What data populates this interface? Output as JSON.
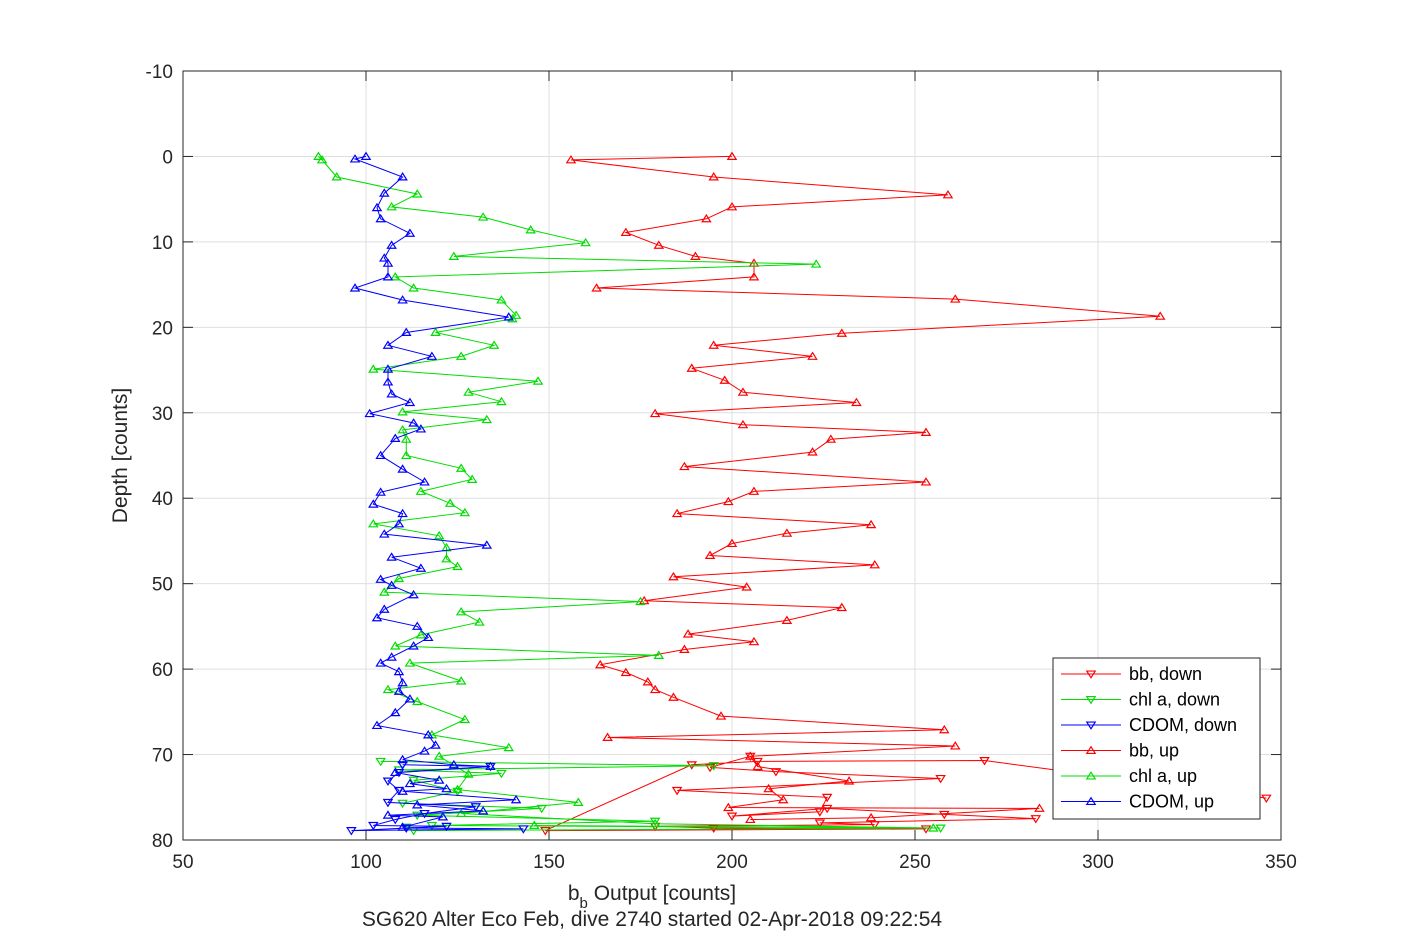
{
  "chart_data": {
    "type": "line",
    "xlabel_main": "b",
    "xlabel_sub": "b",
    "xlabel_rest": " Output [counts]",
    "ylabel": "Depth [counts]",
    "caption": "SG620 Alter Eco Feb, dive 2740 started 02-Apr-2018 09:22:54",
    "xlim": [
      50,
      350
    ],
    "ylim": [
      -10,
      80
    ],
    "y_reversed": true,
    "grid": true,
    "legend_position": "lower-right",
    "xticks": [
      "50",
      "100",
      "150",
      "200",
      "250",
      "300",
      "350"
    ],
    "yticks": [
      "-10",
      "0",
      "10",
      "20",
      "30",
      "40",
      "50",
      "60",
      "70",
      "80"
    ],
    "series": [
      {
        "name": "bb, down",
        "color": "#ff0000",
        "marker": "triangle-down",
        "points": [
          [
            205,
            70.2
          ],
          [
            194,
            71.5
          ],
          [
            212,
            72.0
          ],
          [
            257,
            72.8
          ],
          [
            185,
            74.2
          ],
          [
            226,
            75.0
          ],
          [
            224,
            76.7
          ],
          [
            200,
            77.2
          ],
          [
            226,
            76.3
          ],
          [
            258,
            77.0
          ],
          [
            283,
            77.5
          ],
          [
            224,
            78.0
          ],
          [
            239,
            78.2
          ],
          [
            179,
            78.4
          ],
          [
            195,
            78.6
          ],
          [
            253,
            78.7
          ],
          [
            149,
            78.9
          ],
          [
            189,
            71.2
          ],
          [
            207,
            70.8
          ],
          [
            269,
            70.7
          ],
          [
            346,
            75.1
          ]
        ]
      },
      {
        "name": "chl a, down",
        "color": "#00dd00",
        "marker": "triangle-down",
        "points": [
          [
            104,
            70.8
          ],
          [
            195,
            71.3
          ],
          [
            109,
            71.8
          ],
          [
            137,
            72.2
          ],
          [
            113,
            73.0
          ],
          [
            125,
            74.3
          ],
          [
            110,
            75.7
          ],
          [
            148,
            76.3
          ],
          [
            114,
            77.1
          ],
          [
            179,
            77.8
          ],
          [
            118,
            78.3
          ],
          [
            257,
            78.6
          ],
          [
            113,
            78.9
          ],
          [
            111,
            78.5
          ]
        ]
      },
      {
        "name": "CDOM, down",
        "color": "#0000ff",
        "marker": "triangle-down",
        "points": [
          [
            110,
            71.2
          ],
          [
            134,
            71.4
          ],
          [
            109,
            72.1
          ],
          [
            106,
            73.1
          ],
          [
            109,
            74.2
          ],
          [
            106,
            75.6
          ],
          [
            130,
            76.1
          ],
          [
            116,
            76.9
          ],
          [
            108,
            77.6
          ],
          [
            102,
            78.3
          ],
          [
            122,
            78.4
          ],
          [
            96,
            78.9
          ],
          [
            143,
            78.7
          ],
          [
            111,
            78.6
          ]
        ]
      },
      {
        "name": "bb, up",
        "color": "#ff0000",
        "marker": "triangle-up",
        "points": [
          [
            200,
            0.0
          ],
          [
            156,
            0.4
          ],
          [
            195,
            2.4
          ],
          [
            259,
            4.5
          ],
          [
            200,
            5.9
          ],
          [
            193,
            7.3
          ],
          [
            171,
            8.9
          ],
          [
            180,
            10.4
          ],
          [
            190,
            11.7
          ],
          [
            206,
            12.5
          ],
          [
            206,
            14.1
          ],
          [
            163,
            15.4
          ],
          [
            261,
            16.7
          ],
          [
            317,
            18.7
          ],
          [
            230,
            20.7
          ],
          [
            195,
            22.1
          ],
          [
            222,
            23.4
          ],
          [
            189,
            24.8
          ],
          [
            198,
            26.2
          ],
          [
            203,
            27.6
          ],
          [
            234,
            28.8
          ],
          [
            179,
            30.1
          ],
          [
            203,
            31.4
          ],
          [
            253,
            32.3
          ],
          [
            227,
            33.1
          ],
          [
            222,
            34.6
          ],
          [
            187,
            36.3
          ],
          [
            253,
            38.1
          ],
          [
            206,
            39.2
          ],
          [
            199,
            40.4
          ],
          [
            185,
            41.8
          ],
          [
            238,
            43.1
          ],
          [
            215,
            44.1
          ],
          [
            200,
            45.3
          ],
          [
            194,
            46.7
          ],
          [
            239,
            47.8
          ],
          [
            184,
            49.2
          ],
          [
            204,
            50.4
          ],
          [
            176,
            52.0
          ],
          [
            230,
            52.8
          ],
          [
            215,
            54.3
          ],
          [
            188,
            55.9
          ],
          [
            206,
            56.8
          ],
          [
            187,
            57.7
          ],
          [
            164,
            59.5
          ],
          [
            171,
            60.4
          ],
          [
            177,
            61.5
          ],
          [
            179,
            62.4
          ],
          [
            184,
            63.3
          ],
          [
            197,
            65.5
          ],
          [
            258,
            67.1
          ],
          [
            166,
            68.0
          ],
          [
            261,
            69.0
          ],
          [
            205,
            70.2
          ],
          [
            207,
            71.4
          ],
          [
            232,
            73.1
          ],
          [
            210,
            74.0
          ],
          [
            214,
            75.3
          ],
          [
            199,
            76.2
          ],
          [
            284,
            76.3
          ],
          [
            238,
            77.4
          ],
          [
            205,
            77.6
          ]
        ]
      },
      {
        "name": "chl a, up",
        "color": "#00dd00",
        "marker": "triangle-up",
        "points": [
          [
            87,
            0.0
          ],
          [
            88,
            0.4
          ],
          [
            92,
            2.4
          ],
          [
            114,
            4.4
          ],
          [
            107,
            5.9
          ],
          [
            132,
            7.1
          ],
          [
            145,
            8.6
          ],
          [
            160,
            10.1
          ],
          [
            124,
            11.7
          ],
          [
            223,
            12.6
          ],
          [
            108,
            14.1
          ],
          [
            113,
            15.4
          ],
          [
            137,
            16.8
          ],
          [
            141,
            18.6
          ],
          [
            140,
            19.0
          ],
          [
            119,
            20.6
          ],
          [
            135,
            22.1
          ],
          [
            126,
            23.4
          ],
          [
            102,
            24.9
          ],
          [
            147,
            26.3
          ],
          [
            128,
            27.6
          ],
          [
            137,
            28.7
          ],
          [
            110,
            29.9
          ],
          [
            133,
            30.8
          ],
          [
            110,
            32.0
          ],
          [
            111,
            33.1
          ],
          [
            111,
            35.0
          ],
          [
            126,
            36.5
          ],
          [
            129,
            37.8
          ],
          [
            115,
            39.2
          ],
          [
            123,
            40.6
          ],
          [
            127,
            41.7
          ],
          [
            102,
            43.0
          ],
          [
            120,
            44.4
          ],
          [
            122,
            45.8
          ],
          [
            122,
            47.1
          ],
          [
            125,
            48.0
          ],
          [
            109,
            49.4
          ],
          [
            105,
            51.0
          ],
          [
            175,
            52.1
          ],
          [
            126,
            53.3
          ],
          [
            131,
            54.5
          ],
          [
            115,
            56.0
          ],
          [
            108,
            57.3
          ],
          [
            180,
            58.4
          ],
          [
            112,
            59.3
          ],
          [
            126,
            61.4
          ],
          [
            106,
            62.4
          ],
          [
            114,
            63.8
          ],
          [
            127,
            65.9
          ],
          [
            118,
            67.7
          ],
          [
            139,
            69.2
          ],
          [
            120,
            70.2
          ],
          [
            128,
            72.3
          ],
          [
            125,
            74.1
          ],
          [
            158,
            75.6
          ],
          [
            126,
            76.9
          ],
          [
            179,
            78.1
          ],
          [
            255,
            78.6
          ],
          [
            146,
            78.3
          ]
        ]
      },
      {
        "name": "CDOM, up",
        "color": "#0000ff",
        "marker": "triangle-up",
        "points": [
          [
            100,
            0.0
          ],
          [
            97,
            0.3
          ],
          [
            110,
            2.4
          ],
          [
            105,
            4.3
          ],
          [
            103,
            6.0
          ],
          [
            104,
            7.3
          ],
          [
            112,
            9.0
          ],
          [
            107,
            10.4
          ],
          [
            105,
            11.9
          ],
          [
            106,
            12.5
          ],
          [
            106,
            14.1
          ],
          [
            97,
            15.4
          ],
          [
            110,
            16.8
          ],
          [
            139,
            18.8
          ],
          [
            111,
            20.6
          ],
          [
            106,
            22.1
          ],
          [
            118,
            23.4
          ],
          [
            106,
            24.9
          ],
          [
            106,
            26.4
          ],
          [
            107,
            27.8
          ],
          [
            112,
            28.8
          ],
          [
            101,
            30.1
          ],
          [
            113,
            31.2
          ],
          [
            115,
            31.9
          ],
          [
            108,
            33.0
          ],
          [
            104,
            35.0
          ],
          [
            110,
            36.6
          ],
          [
            116,
            38.1
          ],
          [
            104,
            39.3
          ],
          [
            102,
            40.7
          ],
          [
            110,
            41.8
          ],
          [
            109,
            43.0
          ],
          [
            105,
            44.2
          ],
          [
            133,
            45.5
          ],
          [
            107,
            46.9
          ],
          [
            115,
            48.2
          ],
          [
            104,
            49.5
          ],
          [
            107,
            50.2
          ],
          [
            113,
            51.3
          ],
          [
            105,
            53.0
          ],
          [
            103,
            54.0
          ],
          [
            114,
            55.0
          ],
          [
            117,
            56.3
          ],
          [
            113,
            57.3
          ],
          [
            107,
            58.6
          ],
          [
            104,
            59.3
          ],
          [
            109,
            60.3
          ],
          [
            110,
            61.6
          ],
          [
            109,
            62.6
          ],
          [
            112,
            63.5
          ],
          [
            108,
            65.1
          ],
          [
            103,
            66.6
          ],
          [
            117,
            67.7
          ],
          [
            119,
            68.9
          ],
          [
            116,
            69.6
          ],
          [
            110,
            70.6
          ],
          [
            124,
            71.2
          ],
          [
            134,
            71.4
          ],
          [
            108,
            72.1
          ],
          [
            120,
            73.0
          ],
          [
            112,
            73.4
          ],
          [
            122,
            74.0
          ],
          [
            110,
            74.3
          ],
          [
            141,
            75.3
          ],
          [
            114,
            75.9
          ],
          [
            132,
            76.6
          ],
          [
            106,
            77.1
          ],
          [
            121,
            77.3
          ],
          [
            110,
            78.5
          ]
        ]
      }
    ]
  }
}
